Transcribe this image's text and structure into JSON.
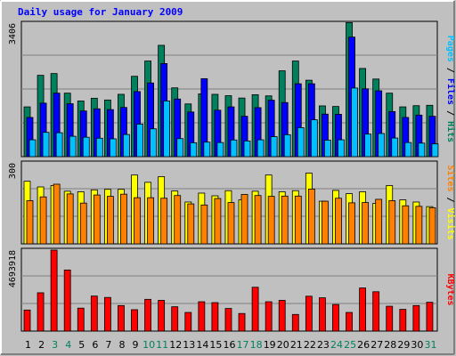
{
  "chart_data": {
    "type": "bar",
    "title": "Daily usage for January 2009",
    "days": [
      "1",
      "2",
      "3",
      "4",
      "5",
      "6",
      "7",
      "8",
      "9",
      "10",
      "11",
      "12",
      "13",
      "14",
      "15",
      "16",
      "17",
      "18",
      "19",
      "20",
      "21",
      "22",
      "23",
      "24",
      "25",
      "26",
      "27",
      "28",
      "29",
      "30",
      "31"
    ],
    "weekend_days": [
      "3",
      "4",
      "10",
      "11",
      "17",
      "18",
      "24",
      "25",
      "31"
    ],
    "colors": {
      "background": "#c0c0c0",
      "plot_bg": "#c0c0c0",
      "hits": "#00805c",
      "files": "#0000ff",
      "pages": "#00c0ff",
      "visits": "#ffff00",
      "sites": "#ff8000",
      "kbytes": "#ff0000",
      "weekday_label": "#000000",
      "weekend_label": "#00805c"
    },
    "panels": [
      {
        "name": "Pages / Files / Hits",
        "ymax_label": "3406",
        "ymax": 3406,
        "series": [
          {
            "name": "Hits",
            "color": "#00805c",
            "values": [
              1270,
              2075,
              2120,
              1620,
              1420,
              1490,
              1445,
              1590,
              2050,
              2440,
              2840,
              1755,
              1345,
              1600,
              1590,
              1555,
              1495,
              1580,
              1550,
              2190,
              2440,
              1950,
              1295,
              1280,
              3420,
              2250,
              1980,
              1620,
              1270,
              1300,
              1310
            ]
          },
          {
            "name": "Files",
            "color": "#0000ff",
            "values": [
              1000,
              1365,
              1620,
              1350,
              1165,
              1220,
              1200,
              1255,
              1660,
              1880,
              2375,
              1470,
              1140,
              1990,
              1185,
              1270,
              1030,
              1250,
              1440,
              1380,
              1860,
              1860,
              1085,
              1080,
              3050,
              1730,
              1680,
              1150,
              1000,
              1060,
              1030
            ]
          },
          {
            "name": "Pages",
            "color": "#00c0ff",
            "values": [
              430,
              620,
              610,
              520,
              495,
              470,
              455,
              565,
              830,
              710,
              1420,
              460,
              355,
              370,
              360,
              425,
              400,
              430,
              510,
              560,
              740,
              940,
              420,
              430,
              1750,
              575,
              590,
              475,
              360,
              345,
              325
            ]
          }
        ]
      },
      {
        "name": "Sites / Visits",
        "ymax_label": "300",
        "ymax": 300,
        "series": [
          {
            "name": "Visits",
            "color": "#ffff00",
            "values": [
              232,
              211,
              216,
              195,
              193,
              200,
              202,
              202,
              255,
              228,
              249,
              196,
              155,
              188,
              178,
              197,
              163,
              195,
              255,
              193,
              197,
              262,
              158,
              198,
              186,
              193,
              150,
              216,
              163,
              155,
              138
            ]
          },
          {
            "name": "Sites",
            "color": "#ff8000",
            "values": [
              160,
              174,
              221,
              185,
              151,
              181,
              176,
              184,
              171,
              171,
              169,
              179,
              148,
              144,
              168,
              153,
              183,
              179,
              176,
              177,
              177,
              203,
              158,
              169,
              152,
              153,
              165,
              160,
              141,
              139,
              134
            ]
          }
        ]
      },
      {
        "name": "KBytes",
        "ymax_label": "4693918",
        "ymax": 4693918,
        "series": [
          {
            "name": "KBytes",
            "color": "#ff0000",
            "values": [
              1220000,
              2220000,
              4693918,
              3540000,
              1330000,
              2030000,
              1950000,
              1480000,
              1240000,
              1840000,
              1780000,
              1410000,
              1080000,
              1700000,
              1650000,
              1310000,
              1020000,
              2540000,
              1700000,
              1780000,
              965000,
              2020000,
              1930000,
              1540000,
              1080000,
              2500000,
              2280000,
              1440000,
              1260000,
              1480000,
              1670000
            ]
          }
        ]
      }
    ]
  }
}
